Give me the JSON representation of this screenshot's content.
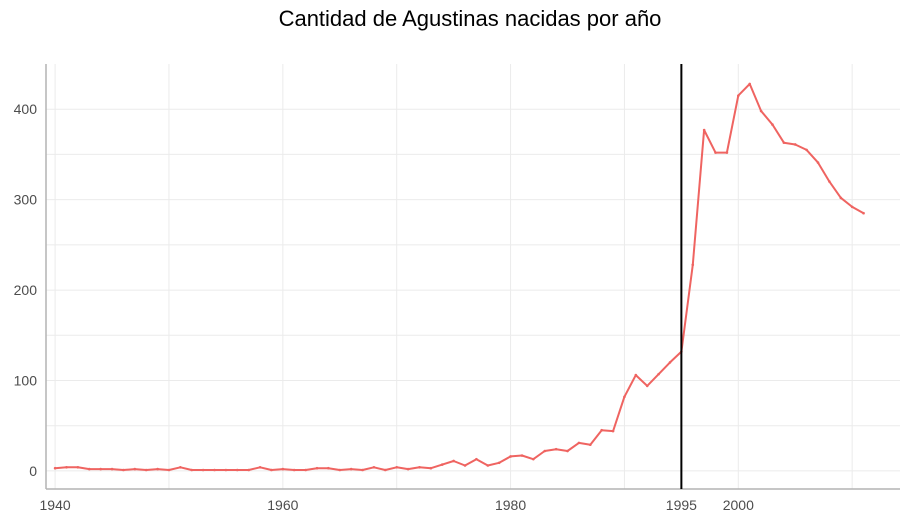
{
  "chart_data": {
    "type": "line",
    "title": "Cantidad de Agustinas nacidas por año",
    "xlabel": "",
    "ylabel": "",
    "xlim": [
      1939.2,
      2014.2
    ],
    "ylim": [
      -20,
      450
    ],
    "x_ticks": [
      1940,
      1960,
      1980,
      1995,
      2000
    ],
    "y_ticks": [
      0,
      100,
      200,
      300,
      400
    ],
    "x_gridlines": [
      1940,
      1950,
      1960,
      1970,
      1980,
      1990,
      2000,
      2010
    ],
    "y_gridlines": [
      0,
      50,
      100,
      150,
      200,
      250,
      300,
      350,
      400
    ],
    "vline": 1995,
    "line_color": "#ef6461",
    "vline_color": "#000000",
    "series": [
      {
        "x": [
          1940,
          1941,
          1942,
          1943,
          1944,
          1945,
          1946,
          1947,
          1948,
          1949,
          1950,
          1951,
          1952,
          1953,
          1954,
          1955,
          1956,
          1957,
          1958,
          1959,
          1960,
          1961,
          1962,
          1963,
          1964,
          1965,
          1966,
          1967,
          1968,
          1969,
          1970,
          1971,
          1972,
          1973,
          1974,
          1975,
          1976,
          1977,
          1978,
          1979,
          1980,
          1981,
          1982,
          1983,
          1984,
          1985,
          1986,
          1987,
          1988,
          1989,
          1990,
          1991,
          1992,
          1993,
          1994,
          1995,
          1996,
          1997,
          1998,
          1999,
          2000,
          2001,
          2002,
          2003,
          2004,
          2005,
          2006,
          2007,
          2008,
          2009,
          2010,
          2011
        ],
        "y": [
          3,
          4,
          4,
          2,
          2,
          2,
          1,
          2,
          1,
          2,
          1,
          4,
          1,
          1,
          1,
          1,
          1,
          1,
          4,
          1,
          2,
          1,
          1,
          3,
          3,
          1,
          2,
          1,
          4,
          1,
          4,
          2,
          4,
          3,
          7,
          11,
          6,
          13,
          6,
          9,
          16,
          17,
          13,
          22,
          24,
          22,
          31,
          29,
          45,
          44,
          82,
          106,
          94,
          107,
          120,
          132,
          228,
          377,
          352,
          352,
          415,
          428,
          398,
          383,
          363,
          361,
          355,
          341,
          320,
          302,
          292,
          285
        ]
      }
    ]
  }
}
